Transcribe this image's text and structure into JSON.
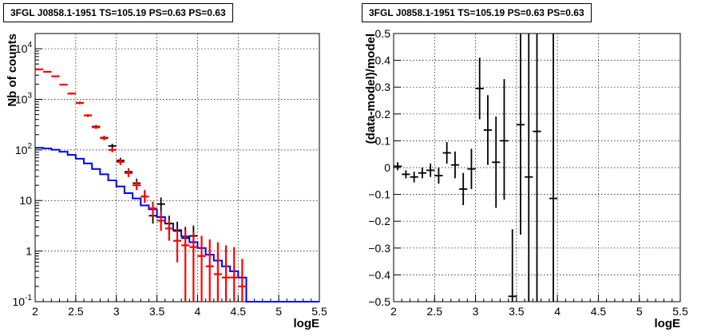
{
  "colors": {
    "model": "#0000ff",
    "data": "#000000",
    "sim": "#ff0000",
    "grid": "#000000"
  },
  "chart_data": [
    {
      "type": "scatter",
      "title": "3FGL J0858.1-1951 TS=105.19 PS=0.63 PS=0.63",
      "xlabel": "logE",
      "ylabel": "Nb of counts",
      "xlim": [
        2,
        5.5
      ],
      "ylim": [
        0.1,
        20000
      ],
      "yscale": "log",
      "grid": true,
      "xticks": [
        "2",
        "2.5",
        "3",
        "3.5",
        "4",
        "4.5",
        "5",
        "5.5"
      ],
      "yticks": [
        {
          "value": 0.1,
          "base": "10",
          "exp": "-1",
          "plain": ""
        },
        {
          "value": 1,
          "base": "",
          "exp": "",
          "plain": "1"
        },
        {
          "value": 10,
          "base": "",
          "exp": "",
          "plain": "10"
        },
        {
          "value": 100,
          "base": "10",
          "exp": "2",
          "plain": ""
        },
        {
          "value": 1000,
          "base": "10",
          "exp": "3",
          "plain": ""
        },
        {
          "value": 10000,
          "base": "10",
          "exp": "4",
          "plain": ""
        }
      ],
      "bin_edges": [
        2.0,
        2.1,
        2.2,
        2.3,
        2.4,
        2.5,
        2.6,
        2.7,
        2.8,
        2.9,
        3.0,
        3.1,
        3.2,
        3.3,
        3.4,
        3.5,
        3.6,
        3.7,
        3.8,
        3.9,
        4.0,
        4.1,
        4.2,
        4.3,
        4.4,
        4.5,
        4.6,
        4.7,
        4.8,
        4.9,
        5.0,
        5.1,
        5.2,
        5.3,
        5.4,
        5.5
      ],
      "series": [
        {
          "role": "model",
          "style": "step",
          "values": [
            110,
            107,
            101,
            92,
            80,
            67,
            54,
            42,
            33,
            25,
            19,
            14,
            11,
            8,
            6.7,
            4.7,
            3.5,
            2.6,
            1.95,
            1.5,
            1.15,
            0.85,
            0.65,
            0.5,
            0.4,
            0.3,
            0.1,
            0.1,
            0.1,
            0.1,
            0.1,
            0.1,
            0.1,
            0.1,
            0.1
          ]
        },
        {
          "role": "data",
          "style": "errorbar",
          "points": [
            {
              "x": 2.05,
              "y": 3900,
              "lo": 3780,
              "hi": 4020
            },
            {
              "x": 2.15,
              "y": 3500,
              "lo": 3390,
              "hi": 3610
            },
            {
              "x": 2.25,
              "y": 2850,
              "lo": 2750,
              "hi": 2950
            },
            {
              "x": 2.35,
              "y": 1950,
              "lo": 1870,
              "hi": 2030
            },
            {
              "x": 2.45,
              "y": 1300,
              "lo": 1240,
              "hi": 1360
            },
            {
              "x": 2.55,
              "y": 850,
              "lo": 800,
              "hi": 900
            },
            {
              "x": 2.65,
              "y": 480,
              "lo": 450,
              "hi": 510
            },
            {
              "x": 2.75,
              "y": 290,
              "lo": 270,
              "hi": 310
            },
            {
              "x": 2.85,
              "y": 175,
              "lo": 160,
              "hi": 190
            },
            {
              "x": 2.95,
              "y": 120,
              "lo": 108,
              "hi": 132
            },
            {
              "x": 3.05,
              "y": 62,
              "lo": 54,
              "hi": 70
            },
            {
              "x": 3.15,
              "y": 37,
              "lo": 31,
              "hi": 43
            },
            {
              "x": 3.25,
              "y": 22,
              "lo": 18,
              "hi": 27
            },
            {
              "x": 3.35,
              "y": 12,
              "lo": 9,
              "hi": 16
            },
            {
              "x": 3.45,
              "y": 5,
              "lo": 3.5,
              "hi": 7
            },
            {
              "x": 3.55,
              "y": 8.5,
              "lo": 6,
              "hi": 11.5
            },
            {
              "x": 3.65,
              "y": 3.5,
              "lo": 2.2,
              "hi": 5
            },
            {
              "x": 3.75,
              "y": 2.5,
              "lo": 1.5,
              "hi": 3.8
            },
            {
              "x": 3.85,
              "y": 1.8,
              "lo": 1,
              "hi": 3
            },
            {
              "x": 3.95,
              "y": 2,
              "lo": 1.1,
              "hi": 3.2
            }
          ]
        },
        {
          "role": "sim",
          "style": "errorbar",
          "points": [
            {
              "x": 2.05,
              "y": 3900,
              "lo": 3780,
              "hi": 4020
            },
            {
              "x": 2.15,
              "y": 3500,
              "lo": 3390,
              "hi": 3610
            },
            {
              "x": 2.25,
              "y": 2850,
              "lo": 2750,
              "hi": 2950
            },
            {
              "x": 2.35,
              "y": 1950,
              "lo": 1870,
              "hi": 2030
            },
            {
              "x": 2.45,
              "y": 1300,
              "lo": 1240,
              "hi": 1360
            },
            {
              "x": 2.55,
              "y": 850,
              "lo": 800,
              "hi": 900
            },
            {
              "x": 2.65,
              "y": 480,
              "lo": 450,
              "hi": 510
            },
            {
              "x": 2.75,
              "y": 280,
              "lo": 260,
              "hi": 300
            },
            {
              "x": 2.85,
              "y": 170,
              "lo": 155,
              "hi": 185
            },
            {
              "x": 2.95,
              "y": 100,
              "lo": 90,
              "hi": 110
            },
            {
              "x": 3.05,
              "y": 58,
              "lo": 50,
              "hi": 66
            },
            {
              "x": 3.15,
              "y": 35,
              "lo": 29,
              "hi": 41
            },
            {
              "x": 3.25,
              "y": 20,
              "lo": 16,
              "hi": 25
            },
            {
              "x": 3.35,
              "y": 12,
              "lo": 9,
              "hi": 16
            },
            {
              "x": 3.45,
              "y": 7,
              "lo": 4.8,
              "hi": 9.5
            },
            {
              "x": 3.55,
              "y": 4,
              "lo": 2.5,
              "hi": 6
            },
            {
              "x": 3.65,
              "y": 2.8,
              "lo": 1.6,
              "hi": 4.2
            },
            {
              "x": 3.75,
              "y": 1.6,
              "lo": 0.6,
              "hi": 2.8
            },
            {
              "x": 3.85,
              "y": 1.3,
              "lo": 0.1,
              "hi": 2.6
            },
            {
              "x": 3.95,
              "y": 1.2,
              "lo": 0.1,
              "hi": 2.4
            },
            {
              "x": 4.05,
              "y": 0.8,
              "lo": 0.1,
              "hi": 2
            },
            {
              "x": 4.15,
              "y": 0.5,
              "lo": 0.1,
              "hi": 1.7
            },
            {
              "x": 4.25,
              "y": 0.35,
              "lo": 0.1,
              "hi": 1.5
            },
            {
              "x": 4.35,
              "y": 0.3,
              "lo": 0.1,
              "hi": 1.3
            },
            {
              "x": 4.45,
              "y": 0.3,
              "lo": 0.1,
              "hi": 1.2
            },
            {
              "x": 4.55,
              "y": 0.2,
              "lo": 0.1,
              "hi": 0.7
            }
          ]
        }
      ]
    },
    {
      "type": "scatter",
      "title": "3FGL J0858.1-1951 TS=105.19 PS=0.63 PS=0.63",
      "xlabel": "logE",
      "ylabel": "(data-model)/model",
      "xlim": [
        2,
        5.5
      ],
      "ylim": [
        -0.5,
        0.5
      ],
      "yscale": "linear",
      "grid": true,
      "xticks": [
        "2",
        "2.5",
        "3",
        "3.5",
        "4",
        "4.5",
        "5",
        "5.5"
      ],
      "yticks": [
        "−0.5",
        "−0.4",
        "−0.3",
        "−0.2",
        "−0.1",
        "0",
        "0.1",
        "0.2",
        "0.3",
        "0.4",
        "0.5"
      ],
      "series": [
        {
          "role": "residual",
          "style": "errorbar",
          "points": [
            {
              "x": 2.05,
              "y": 0.005,
              "lo": -0.01,
              "hi": 0.02
            },
            {
              "x": 2.15,
              "y": -0.025,
              "lo": -0.04,
              "hi": -0.01
            },
            {
              "x": 2.25,
              "y": -0.035,
              "lo": -0.055,
              "hi": -0.015
            },
            {
              "x": 2.35,
              "y": -0.02,
              "lo": -0.04,
              "hi": 0
            },
            {
              "x": 2.45,
              "y": -0.01,
              "lo": -0.035,
              "hi": 0.015
            },
            {
              "x": 2.55,
              "y": -0.03,
              "lo": -0.06,
              "hi": 0
            },
            {
              "x": 2.65,
              "y": 0.055,
              "lo": 0.015,
              "hi": 0.095
            },
            {
              "x": 2.75,
              "y": 0.01,
              "lo": -0.04,
              "hi": 0.06
            },
            {
              "x": 2.85,
              "y": -0.08,
              "lo": -0.14,
              "hi": -0.02
            },
            {
              "x": 2.95,
              "y": -0.005,
              "lo": -0.08,
              "hi": 0.07
            },
            {
              "x": 3.05,
              "y": 0.295,
              "lo": 0.18,
              "hi": 0.41
            },
            {
              "x": 3.15,
              "y": 0.14,
              "lo": 0.01,
              "hi": 0.27
            },
            {
              "x": 3.25,
              "y": 0.02,
              "lo": -0.15,
              "hi": 0.19
            },
            {
              "x": 3.35,
              "y": 0.1,
              "lo": -0.12,
              "hi": 0.33
            },
            {
              "x": 3.45,
              "y": -0.48,
              "lo": -0.5,
              "hi": -0.23
            },
            {
              "x": 3.55,
              "y": 0.16,
              "lo": -0.25,
              "hi": 0.5
            },
            {
              "x": 3.65,
              "y": -0.035,
              "lo": -0.5,
              "hi": 0.5
            },
            {
              "x": 3.75,
              "y": 0.135,
              "lo": -0.5,
              "hi": 0.5
            },
            {
              "x": 3.95,
              "y": -0.115,
              "lo": -0.5,
              "hi": 0.5
            }
          ]
        }
      ]
    }
  ]
}
